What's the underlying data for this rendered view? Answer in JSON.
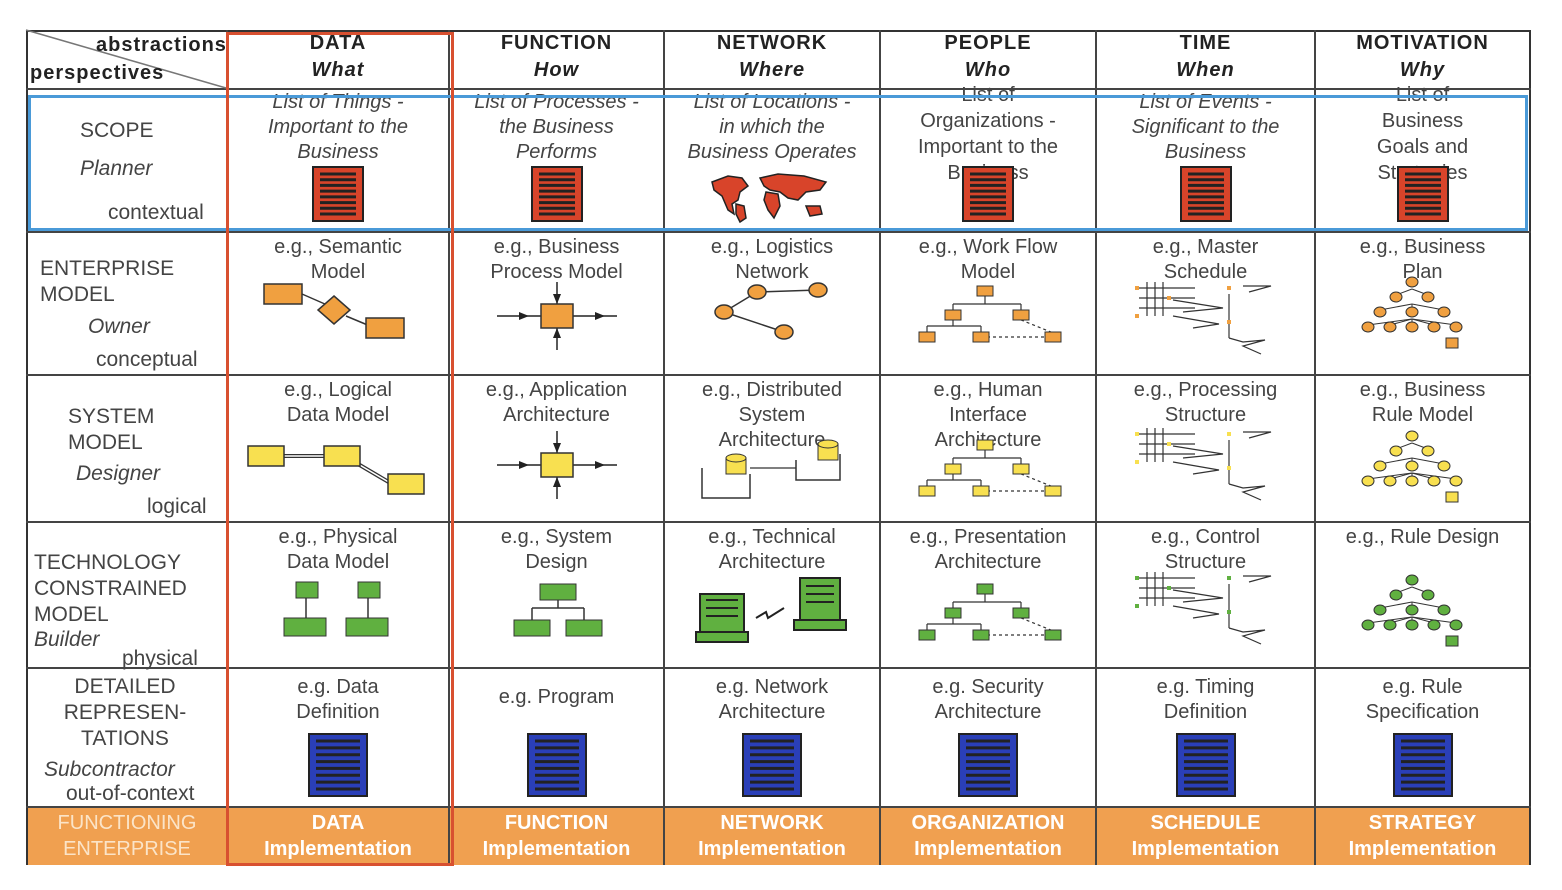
{
  "corner": {
    "top": "abstractions",
    "bottom": "perspectives"
  },
  "columns": [
    {
      "title": "DATA",
      "question": "What"
    },
    {
      "title": "FUNCTION",
      "question": "How"
    },
    {
      "title": "NETWORK",
      "question": "Where"
    },
    {
      "title": "PEOPLE",
      "question": "Who"
    },
    {
      "title": "TIME",
      "question": "When"
    },
    {
      "title": "MOTIVATION",
      "question": "Why"
    }
  ],
  "rows": [
    {
      "name_lines": [
        "SCOPE"
      ],
      "role": "Planner",
      "level": "contextual"
    },
    {
      "name_lines": [
        "ENTERPRISE",
        "MODEL"
      ],
      "role": "Owner",
      "level": "conceptual"
    },
    {
      "name_lines": [
        "SYSTEM",
        "MODEL"
      ],
      "role": "Designer",
      "level": "logical"
    },
    {
      "name_lines": [
        "TECHNOLOGY",
        "CONSTRAINED",
        "MODEL"
      ],
      "role": "Builder",
      "level": "physical"
    },
    {
      "name_lines": [
        "DETAILED",
        "REPRESEN-",
        "TATIONS"
      ],
      "role": "Subcontractor",
      "level": "out-of-context"
    }
  ],
  "cells": {
    "scope": [
      [
        "List of Things -",
        "Important to the",
        "Business"
      ],
      [
        "List of Processes -",
        "the Business",
        "Performs"
      ],
      [
        "List of Locations -",
        "in which the",
        "Business Operates"
      ],
      [
        "List of",
        "Organizations -",
        "Important to the",
        "Business"
      ],
      [
        "List of Events -",
        "Significant to the",
        "Business"
      ],
      [
        "List of",
        "Business",
        "Goals and",
        "Strategies"
      ]
    ],
    "enterprise": [
      [
        "e.g., Semantic",
        "Model"
      ],
      [
        "e.g., Business",
        "Process Model"
      ],
      [
        "e.g., Logistics",
        "Network"
      ],
      [
        "e.g., Work Flow",
        "Model"
      ],
      [
        "e.g., Master",
        "Schedule"
      ],
      [
        "e.g., Business",
        "Plan"
      ]
    ],
    "system": [
      [
        "e.g., Logical",
        "Data Model"
      ],
      [
        "e.g., Application",
        "Architecture"
      ],
      [
        "e.g., Distributed",
        "System",
        "Architecture"
      ],
      [
        "e.g., Human",
        "Interface",
        "Architecture"
      ],
      [
        "e.g., Processing",
        "Structure"
      ],
      [
        "e.g., Business",
        "Rule Model"
      ]
    ],
    "technology": [
      [
        "e.g., Physical",
        "Data Model"
      ],
      [
        "e.g., System",
        "Design"
      ],
      [
        "e.g., Technical",
        "Architecture"
      ],
      [
        "e.g., Presentation",
        "Architecture"
      ],
      [
        "e.g., Control",
        "Structure"
      ],
      [
        "e.g., Rule Design"
      ]
    ],
    "detailed": [
      [
        "e.g. Data",
        "Definition"
      ],
      [
        "e.g. Program"
      ],
      [
        "e.g.  Network",
        "Architecture"
      ],
      [
        "e.g.  Security",
        "Architecture"
      ],
      [
        "e.g.  Timing",
        "Definition"
      ],
      [
        "e.g. Rule",
        "Specification"
      ]
    ]
  },
  "footer": {
    "left": [
      "FUNCTIONING",
      "ENTERPRISE"
    ],
    "items": [
      [
        "DATA",
        "Implementation"
      ],
      [
        "FUNCTION",
        "Implementation"
      ],
      [
        "NETWORK",
        "Implementation"
      ],
      [
        "ORGANIZATION",
        "Implementation"
      ],
      [
        "SCHEDULE",
        "Implementation"
      ],
      [
        "STRATEGY",
        "Implementation"
      ]
    ]
  },
  "colors": {
    "scope_doc": "#d8442a",
    "enterprise": "#f0a040",
    "system": "#f8e050",
    "technology": "#60b040",
    "detailed_doc": "#2a3fb8",
    "footer": "#f0a050",
    "scope_highlight": "#4a9ad8",
    "data_highlight": "#d85030"
  }
}
